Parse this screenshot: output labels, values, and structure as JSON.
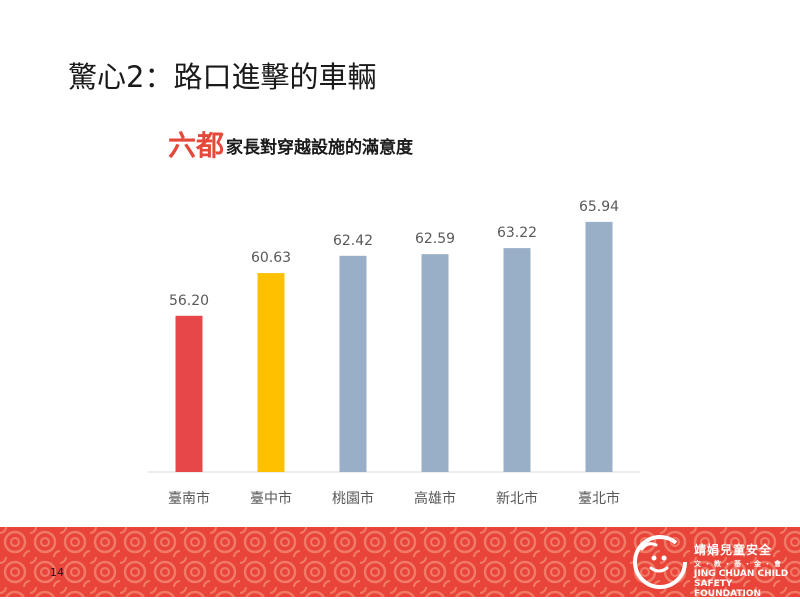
{
  "slide": {
    "title": "驚心2：路口進擊的車輛",
    "page_number": "14"
  },
  "chart_data": {
    "type": "bar",
    "title_highlight": "六都",
    "title_rest": "家長對穿越設施的滿意度",
    "categories": [
      "臺南市",
      "臺中市",
      "桃園市",
      "高雄市",
      "新北市",
      "臺北市"
    ],
    "values": [
      56.2,
      60.63,
      62.42,
      62.59,
      63.22,
      65.94
    ],
    "value_labels": [
      "56.20",
      "60.63",
      "62.42",
      "62.59",
      "63.22",
      "65.94"
    ],
    "bar_colors": [
      "#e8474a",
      "#ffc000",
      "#98afc7",
      "#98afc7",
      "#98afc7",
      "#98afc7"
    ],
    "ylim": [
      40,
      68
    ],
    "grid": false,
    "legend": "none"
  },
  "logo": {
    "cn": "靖娟兒童安全",
    "sub": "文・教・基・金・會",
    "en1": "JING CHUAN CHILD",
    "en2": "SAFETY FOUNDATION"
  },
  "colors": {
    "footer": "#e8443a",
    "footer_pattern": "#f07a66",
    "label": "#595959",
    "axis": "#d9d9d9"
  }
}
